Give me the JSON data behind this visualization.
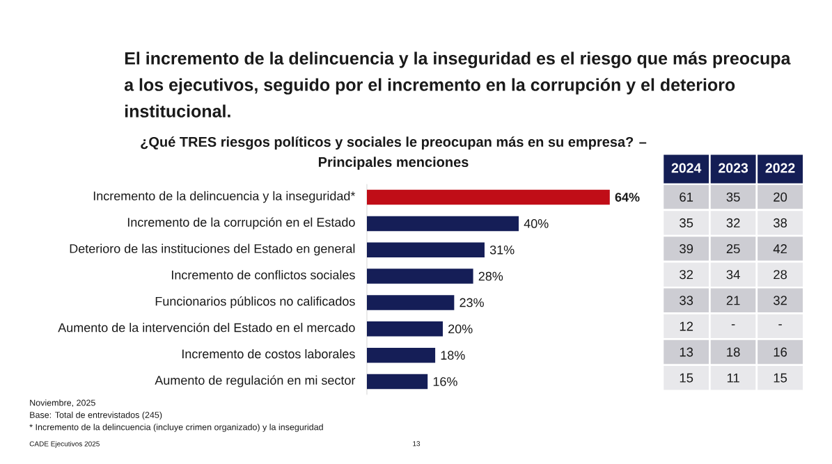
{
  "chart_data": [
    {
      "type": "bar",
      "orientation": "horizontal",
      "title": "El incremento de la delincuencia y la inseguridad es el riesgo que más preocupa a los ejecutivos, seguido por el incremento en la corrupción y el deterioro institucional.",
      "subtitle": "¿Qué TRES riesgos políticos y sociales le preocupan más en su empresa? – Principales menciones",
      "categories": [
        "Incremento de la delincuencia y la inseguridad*",
        "Incremento de la corrupción en el Estado",
        "Deterioro de las instituciones del Estado en general",
        "Incremento de conflictos sociales",
        "Funcionarios públicos no calificados",
        "Aumento de la intervención del Estado en el mercado",
        "Incremento de costos laborales",
        "Aumento de regulación en mi sector"
      ],
      "values": [
        64,
        40,
        31,
        28,
        23,
        20,
        18,
        16
      ],
      "colors": [
        "#c00d17",
        "#151e57",
        "#151e57",
        "#151e57",
        "#151e57",
        "#151e57",
        "#151e57",
        "#151e57"
      ],
      "value_labels": [
        "**64%**",
        "40%",
        "31%",
        "28%",
        "23%",
        "20%",
        "18%",
        "16%"
      ],
      "tick_labels": "y",
      "annotations": [
        "Noviembre, 2025",
        "Base: Total de entrevistados (245)",
        "* Incremento de la delincuencia (incluye crimen organizado) y la inseguridad",
        "CADE Ejecutivos 2025",
        "13"
      ]
    },
    {
      "type": "heatmap",
      "categories": [
        "2024",
        "2023",
        "2022"
      ],
      "y_categories": [
        null,
        null,
        null,
        null,
        null,
        null,
        null,
        null
      ],
      "cells": [
        [
          61,
          35,
          20
        ],
        [
          35,
          32,
          38
        ],
        [
          39,
          25,
          42
        ],
        [
          32,
          34,
          28
        ],
        [
          33,
          21,
          32
        ],
        [
          12,
          null,
          null
        ],
        [
          13,
          18,
          16
        ],
        [
          15,
          11,
          15
        ]
      ],
      "cell_labels": [
        [
          "61",
          "35",
          "20"
        ],
        [
          "35",
          "32",
          "38"
        ],
        [
          "39",
          "25",
          "42"
        ],
        [
          "32",
          "34",
          "28"
        ],
        [
          "33",
          "21",
          "32"
        ],
        [
          "12",
          "-",
          "-"
        ],
        [
          "13",
          "18",
          "16"
        ],
        [
          "15",
          "11",
          "15"
        ]
      ],
      "data_labels": true
    }
  ]
}
